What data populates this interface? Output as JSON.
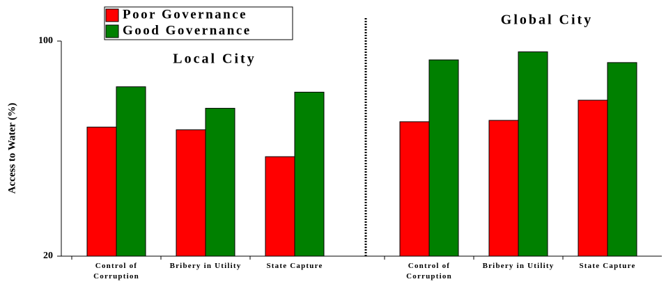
{
  "chart_data": {
    "type": "bar",
    "groups": [
      "Local City",
      "Global City"
    ],
    "categories": [
      "Control of Corruption",
      "Bribery in Utility",
      "State Capture",
      "Control of Corruption",
      "Bribery in Utility",
      "State Capture"
    ],
    "series": [
      {
        "name": "Poor Governance",
        "color": "#ff0000",
        "values": [
          68,
          67,
          57,
          70,
          70.5,
          78
        ]
      },
      {
        "name": "Good Governance",
        "color": "#008000",
        "values": [
          83,
          75,
          81,
          93,
          96,
          92
        ]
      }
    ],
    "ylabel": "Access to Water (%)",
    "ylim": [
      20,
      100
    ],
    "yticks": [
      20,
      100
    ]
  }
}
